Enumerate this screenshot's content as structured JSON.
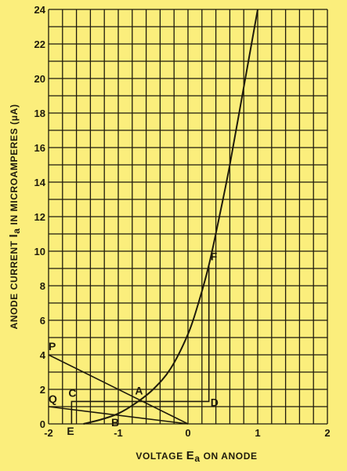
{
  "chart_data": {
    "type": "line",
    "xlabel": {
      "pre": "VOLTAGE ",
      "main": "E",
      "sub": "a",
      "post": " ON ANODE"
    },
    "ylabel": {
      "pre": "ANODE CURRENT ",
      "main": "I",
      "sub": "a",
      "post": " IN MICROAMPERES (μA)"
    },
    "xlim": [
      -2,
      2
    ],
    "ylim": [
      0,
      24
    ],
    "x_ticks": [
      "-2",
      "-1",
      "0",
      "1",
      "2"
    ],
    "y_ticks": [
      "0",
      "2",
      "4",
      "6",
      "8",
      "10",
      "12",
      "14",
      "16",
      "18",
      "20",
      "22",
      "24"
    ],
    "grid": true,
    "series": [
      {
        "kind": "characteristic-curve",
        "x": [
          -1.5,
          -1.25,
          -1.0,
          -0.75,
          -0.5,
          -0.25,
          0.0,
          0.15,
          0.3,
          0.45,
          0.6,
          0.8,
          1.0
        ],
        "y": [
          0.0,
          0.25,
          0.6,
          1.2,
          2.0,
          3.2,
          5.2,
          7.0,
          9.2,
          12.0,
          15.0,
          19.5,
          24.0
        ]
      },
      {
        "kind": "load-line",
        "x": [
          -2,
          0
        ],
        "y": [
          4,
          0
        ]
      },
      {
        "kind": "load-line",
        "x": [
          -2,
          0
        ],
        "y": [
          1,
          0
        ]
      }
    ],
    "construction_lines": [
      {
        "x": [
          -1.67,
          -1.67,
          0.3,
          0.3
        ],
        "y": [
          0,
          1.3,
          1.3,
          9.2
        ]
      }
    ],
    "annotations": [
      {
        "label": "P",
        "x": -2.0,
        "y": 4.0
      },
      {
        "label": "Q",
        "x": -2.0,
        "y": 1.0
      },
      {
        "label": "C",
        "x": -1.67,
        "y": 1.3
      },
      {
        "label": "E",
        "x": -1.67,
        "y": 0.0
      },
      {
        "label": "A",
        "x": -0.67,
        "y": 1.33
      },
      {
        "label": "B",
        "x": -1.0,
        "y": 0.5
      },
      {
        "label": "D",
        "x": 0.3,
        "y": 1.3
      },
      {
        "label": "F",
        "x": 0.3,
        "y": 9.2
      }
    ],
    "colors": {
      "background": "#fbee7c",
      "ink": "#1e1a0c"
    }
  }
}
